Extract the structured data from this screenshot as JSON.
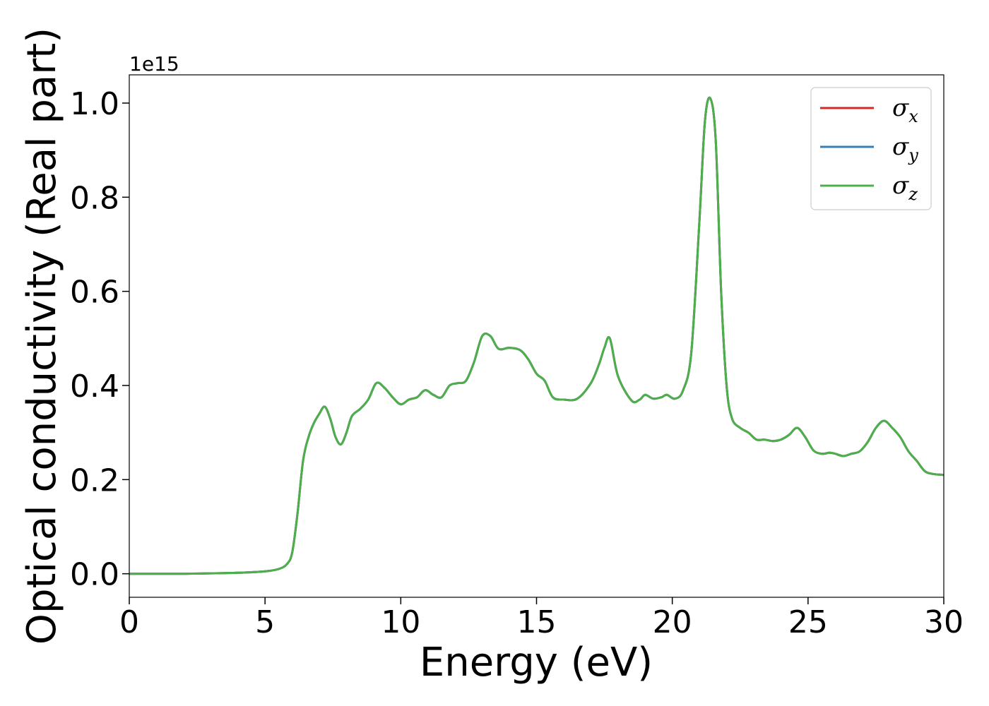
{
  "chart_data": {
    "type": "line",
    "title": "",
    "xlabel": "Energy (eV)",
    "ylabel": "Optical conductivity (Real part)",
    "y_offset_label": "1e15",
    "xlim": [
      0,
      30
    ],
    "ylim": [
      -0.05,
      1.06
    ],
    "xticks": [
      0,
      5,
      10,
      15,
      20,
      25,
      30
    ],
    "yticks": [
      0.0,
      0.2,
      0.4,
      0.6,
      0.8,
      1.0
    ],
    "xtick_labels": [
      "0",
      "5",
      "10",
      "15",
      "20",
      "25",
      "30"
    ],
    "ytick_labels": [
      "0.0",
      "0.2",
      "0.4",
      "0.6",
      "0.8",
      "1.0"
    ],
    "grid": false,
    "legend_position": "top-right",
    "legend": [
      {
        "symbol": "σ",
        "sub": "x",
        "color": "#d62728"
      },
      {
        "symbol": "σ",
        "sub": "y",
        "color": "#377eb8"
      },
      {
        "symbol": "σ",
        "sub": "z",
        "color": "#4daf4a"
      }
    ],
    "series": [
      {
        "color": "#d62728"
      },
      {
        "color": "#377eb8"
      },
      {
        "color": "#4daf4a"
      }
    ],
    "x": [
      0,
      2,
      4,
      5,
      5.5,
      5.8,
      6.0,
      6.2,
      6.4,
      6.6,
      6.8,
      7.0,
      7.2,
      7.4,
      7.6,
      7.8,
      8.0,
      8.2,
      8.5,
      8.8,
      9.1,
      9.4,
      9.7,
      10.0,
      10.3,
      10.6,
      10.9,
      11.2,
      11.5,
      11.8,
      12.1,
      12.4,
      12.7,
      13.0,
      13.3,
      13.6,
      14.0,
      14.4,
      14.7,
      15.0,
      15.3,
      15.6,
      16.0,
      16.5,
      17.0,
      17.3,
      17.5,
      17.7,
      18.0,
      18.5,
      18.8,
      19.0,
      19.3,
      19.6,
      19.8,
      20.1,
      20.4,
      20.7,
      21.0,
      21.2,
      21.4,
      21.6,
      21.8,
      22.0,
      22.2,
      22.5,
      22.8,
      23.1,
      23.4,
      23.7,
      24.0,
      24.3,
      24.6,
      24.9,
      25.2,
      25.5,
      25.8,
      26.0,
      26.3,
      26.6,
      26.9,
      27.2,
      27.5,
      27.8,
      28.1,
      28.4,
      28.7,
      29.0,
      29.3,
      29.6,
      30.0
    ],
    "values": [
      0.0,
      0.0,
      0.002,
      0.005,
      0.01,
      0.02,
      0.045,
      0.13,
      0.24,
      0.29,
      0.32,
      0.34,
      0.355,
      0.33,
      0.29,
      0.275,
      0.3,
      0.335,
      0.35,
      0.37,
      0.405,
      0.395,
      0.375,
      0.36,
      0.37,
      0.375,
      0.39,
      0.38,
      0.375,
      0.4,
      0.405,
      0.41,
      0.45,
      0.505,
      0.505,
      0.478,
      0.48,
      0.475,
      0.455,
      0.425,
      0.41,
      0.375,
      0.37,
      0.372,
      0.405,
      0.445,
      0.48,
      0.5,
      0.42,
      0.368,
      0.37,
      0.38,
      0.372,
      0.375,
      0.38,
      0.372,
      0.39,
      0.47,
      0.75,
      0.96,
      1.01,
      0.92,
      0.6,
      0.4,
      0.33,
      0.31,
      0.3,
      0.285,
      0.285,
      0.282,
      0.285,
      0.295,
      0.31,
      0.29,
      0.262,
      0.255,
      0.257,
      0.255,
      0.25,
      0.255,
      0.26,
      0.28,
      0.31,
      0.325,
      0.31,
      0.29,
      0.26,
      0.24,
      0.218,
      0.212,
      0.21
    ]
  }
}
